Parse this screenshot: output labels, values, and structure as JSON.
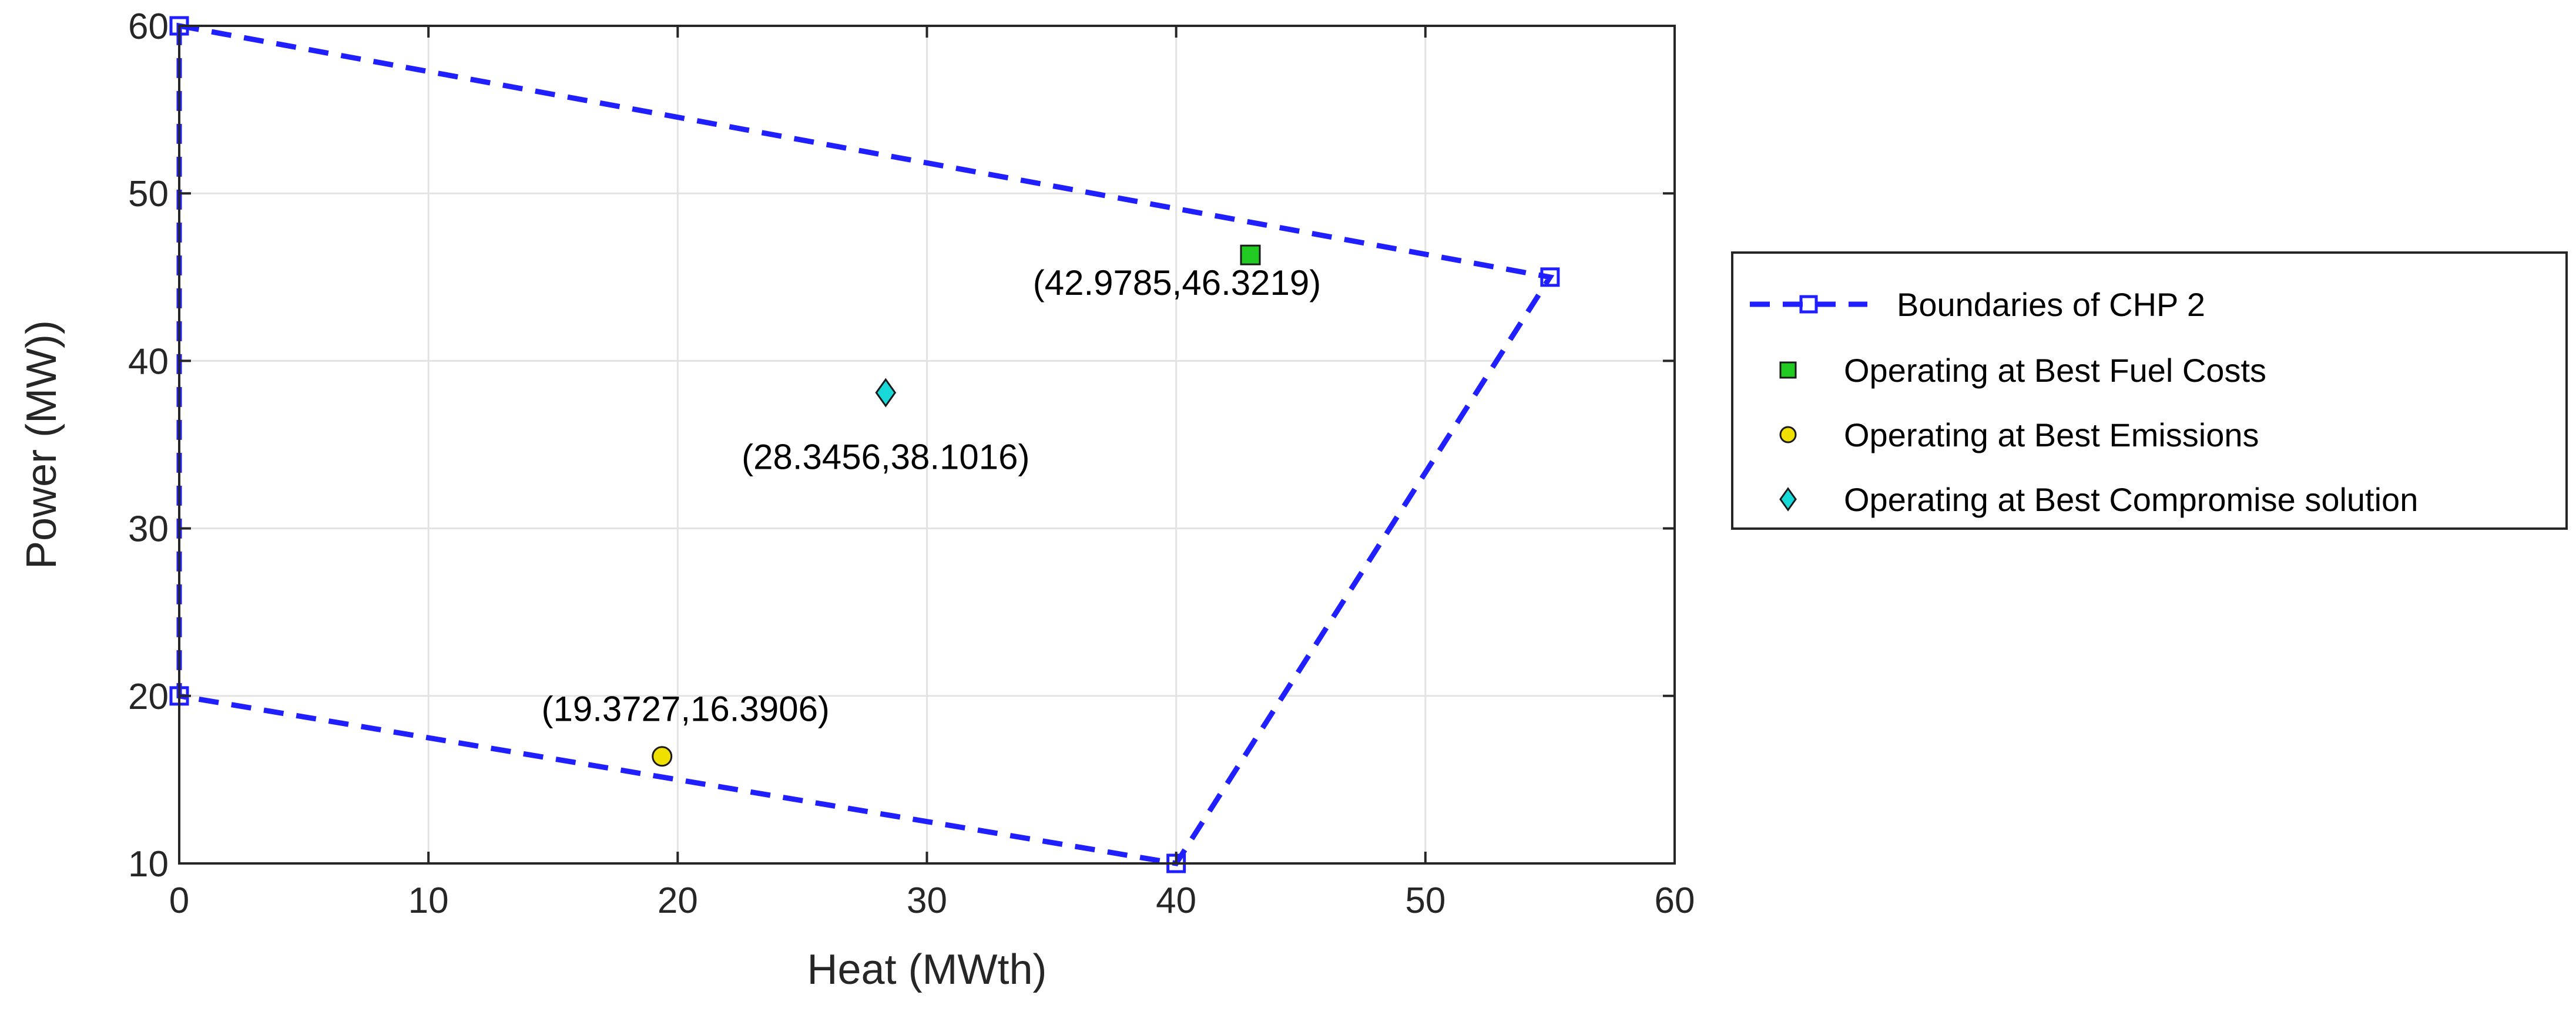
{
  "chart_data": {
    "type": "scatter",
    "title": "",
    "xlabel": "Heat (MWth)",
    "ylabel": "Power (MW))",
    "xlim": [
      0,
      60
    ],
    "ylim": [
      10,
      60
    ],
    "xticks": [
      0,
      10,
      20,
      30,
      40,
      50,
      60
    ],
    "yticks": [
      10,
      20,
      30,
      40,
      50,
      60
    ],
    "grid": true,
    "legend_position": "outside-right",
    "series": [
      {
        "name": "Boundaries of CHP 2",
        "style": "dashed-line-square-markers",
        "color": "#1f1fff",
        "x": [
          0,
          55,
          40,
          0
        ],
        "y": [
          60,
          45,
          10,
          20
        ]
      },
      {
        "name": "Operating at Best Fuel Costs",
        "style": "square-marker",
        "color": "#22c922",
        "x": [
          42.9785
        ],
        "y": [
          46.3219
        ]
      },
      {
        "name": "Operating at Best Emissions",
        "style": "circle-marker",
        "color": "#f0e000",
        "x": [
          19.3727
        ],
        "y": [
          16.3906
        ]
      },
      {
        "name": "Operating at Best Compromise solution",
        "style": "diamond-marker",
        "color": "#18d8d8",
        "x": [
          28.3456
        ],
        "y": [
          38.1016
        ]
      }
    ],
    "annotations": [
      {
        "text": "(42.9785,46.3219)",
        "x": 42.9785,
        "y": 46.3219,
        "placement": "below-left"
      },
      {
        "text": "(28.3456,38.1016)",
        "x": 28.3456,
        "y": 38.1016,
        "placement": "below"
      },
      {
        "text": "(19.3727,16.3906)",
        "x": 19.3727,
        "y": 16.3906,
        "placement": "above"
      }
    ]
  }
}
